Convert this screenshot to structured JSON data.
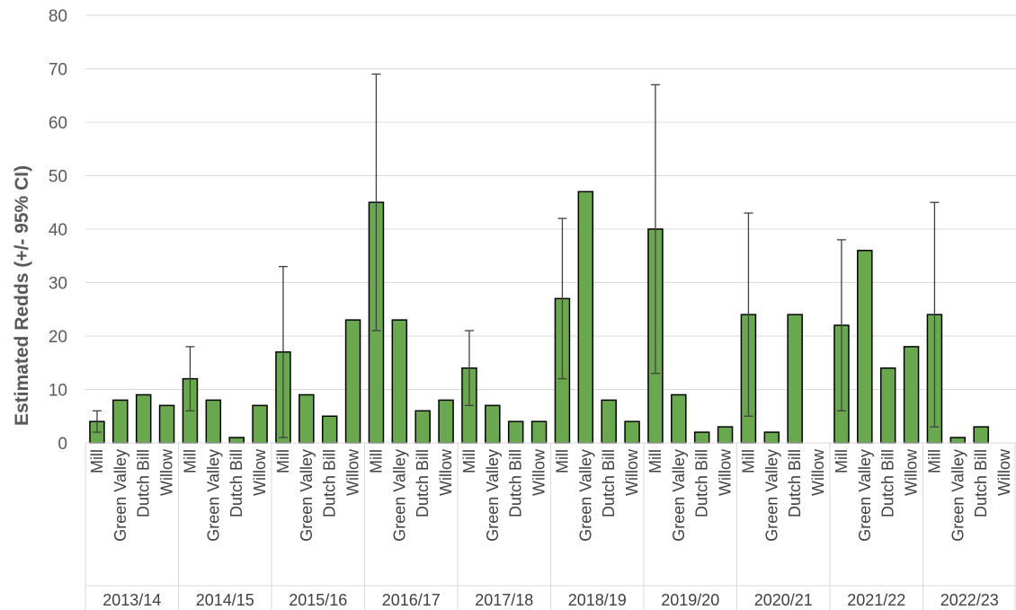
{
  "chart_data": {
    "type": "bar",
    "title": "",
    "xlabel": "",
    "ylabel": "Estimated Redds (+/- 95% CI)",
    "ylim": [
      0,
      80
    ],
    "yticks": [
      0,
      10,
      20,
      30,
      40,
      50,
      60,
      70,
      80
    ],
    "grid": true,
    "legend": "none",
    "colors": {
      "bar_fill": "#6aa84f",
      "bar_edge": "#000000",
      "error_bar": "#404040",
      "grid": "#d9d9d9",
      "axis_text": "#595959"
    },
    "streams": [
      "Mill",
      "Green Valley",
      "Dutch Bill",
      "Willow"
    ],
    "groups": [
      {
        "season": "2013/14",
        "values": [
          4,
          8,
          9,
          7
        ],
        "ci": [
          [
            2,
            6
          ],
          null,
          null,
          null
        ]
      },
      {
        "season": "2014/15",
        "values": [
          12,
          8,
          1,
          7
        ],
        "ci": [
          [
            6,
            18
          ],
          null,
          null,
          null
        ]
      },
      {
        "season": "2015/16",
        "values": [
          17,
          9,
          5,
          23
        ],
        "ci": [
          [
            1,
            33
          ],
          null,
          null,
          null
        ]
      },
      {
        "season": "2016/17",
        "values": [
          45,
          23,
          6,
          8
        ],
        "ci": [
          [
            21,
            69
          ],
          null,
          null,
          null
        ]
      },
      {
        "season": "2017/18",
        "values": [
          14,
          7,
          4,
          4
        ],
        "ci": [
          [
            7,
            21
          ],
          null,
          null,
          null
        ]
      },
      {
        "season": "2018/19",
        "values": [
          27,
          47,
          8,
          4
        ],
        "ci": [
          [
            12,
            42
          ],
          null,
          null,
          null
        ]
      },
      {
        "season": "2019/20",
        "values": [
          40,
          9,
          2,
          3
        ],
        "ci": [
          [
            13,
            67
          ],
          null,
          null,
          null
        ]
      },
      {
        "season": "2020/21",
        "values": [
          24,
          2,
          24,
          0
        ],
        "ci": [
          [
            5,
            43
          ],
          null,
          null,
          null
        ]
      },
      {
        "season": "2021/22",
        "values": [
          22,
          36,
          14,
          18
        ],
        "ci": [
          [
            6,
            38
          ],
          null,
          null,
          null
        ]
      },
      {
        "season": "2022/23",
        "values": [
          24,
          1,
          3,
          0
        ],
        "ci": [
          [
            3,
            45
          ],
          null,
          null,
          null
        ]
      }
    ]
  }
}
